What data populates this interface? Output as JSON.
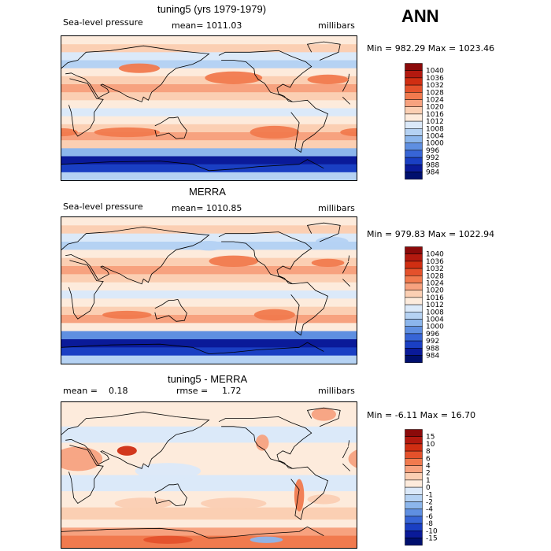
{
  "season": "ANN",
  "chart_data": [
    {
      "type": "heatmap",
      "title": "tuning5 (yrs 1979-1979)",
      "variable": "Sea-level pressure",
      "stat_label": "mean= 1011.03",
      "units": "millibars",
      "minmax": "Min = 982.29 Max = 1023.46",
      "min": 982.29,
      "max": 1023.46,
      "mean": 1011.03,
      "levels": [
        "1040",
        "1036",
        "1032",
        "1028",
        "1024",
        "1020",
        "1016",
        "1012",
        "1008",
        "1004",
        "1000",
        "996",
        "992",
        "988",
        "984"
      ],
      "colors": [
        "#8b0a0a",
        "#b3190f",
        "#d02e12",
        "#e4512b",
        "#f17a4e",
        "#f7a27f",
        "#fbcfb3",
        "#fdebdc",
        "#dbe9f9",
        "#b5d2f3",
        "#8cb6ec",
        "#5f8fe1",
        "#3765d6",
        "#1a3fc3",
        "#0a1a99",
        "#000f6e"
      ],
      "bands": [
        {
          "lat": 90,
          "level": 1012
        },
        {
          "lat": 80,
          "level": 1016
        },
        {
          "lat": 70,
          "level": 1008
        },
        {
          "lat": 60,
          "level": 1004
        },
        {
          "lat": 50,
          "level": 1012
        },
        {
          "lat": 40,
          "level": 1016
        },
        {
          "lat": 30,
          "level": 1020
        },
        {
          "lat": 20,
          "level": 1016
        },
        {
          "lat": 10,
          "level": 1012
        },
        {
          "lat": 0,
          "level": 1008
        },
        {
          "lat": -10,
          "level": 1012
        },
        {
          "lat": -20,
          "level": 1016
        },
        {
          "lat": -30,
          "level": 1020
        },
        {
          "lat": -40,
          "level": 1016
        },
        {
          "lat": -50,
          "level": 1000
        },
        {
          "lat": -60,
          "level": 984
        },
        {
          "lat": -70,
          "level": 988
        },
        {
          "lat": -80,
          "level": 1004
        },
        {
          "lat": -90,
          "level": 1008
        }
      ],
      "cells": [
        {
          "lon": -150,
          "lat": 38,
          "rlon": 35,
          "rlat": 8,
          "level": 1024
        },
        {
          "lon": -35,
          "lat": 36,
          "rlon": 25,
          "rlat": 6,
          "level": 1024
        },
        {
          "lon": -100,
          "lat": -30,
          "rlon": 30,
          "rlat": 8,
          "level": 1024
        },
        {
          "lon": 80,
          "lat": -30,
          "rlon": 40,
          "rlat": 6,
          "level": 1024
        },
        {
          "lon": 0,
          "lat": -30,
          "rlon": 20,
          "rlat": 5,
          "level": 1024
        },
        {
          "lon": 95,
          "lat": 50,
          "rlon": 25,
          "rlat": 6,
          "level": 1024
        },
        {
          "lon": -180,
          "lat": 55,
          "rlon": 15,
          "rlat": 5,
          "level": 1004
        }
      ]
    },
    {
      "type": "heatmap",
      "title": "MERRA",
      "variable": "Sea-level pressure",
      "stat_label": "mean= 1010.85",
      "units": "millibars",
      "minmax": "Min = 979.83 Max = 1022.94",
      "min": 979.83,
      "max": 1022.94,
      "mean": 1010.85,
      "levels": [
        "1040",
        "1036",
        "1032",
        "1028",
        "1024",
        "1020",
        "1016",
        "1012",
        "1008",
        "1004",
        "1000",
        "996",
        "992",
        "988",
        "984"
      ],
      "colors": [
        "#8b0a0a",
        "#b3190f",
        "#d02e12",
        "#e4512b",
        "#f17a4e",
        "#f7a27f",
        "#fbcfb3",
        "#fdebdc",
        "#dbe9f9",
        "#b5d2f3",
        "#8cb6ec",
        "#5f8fe1",
        "#3765d6",
        "#1a3fc3",
        "#0a1a99",
        "#000f6e"
      ],
      "bands": [
        {
          "lat": 90,
          "level": 1012
        },
        {
          "lat": 80,
          "level": 1016
        },
        {
          "lat": 70,
          "level": 1008
        },
        {
          "lat": 60,
          "level": 1004
        },
        {
          "lat": 50,
          "level": 1012
        },
        {
          "lat": 40,
          "level": 1016
        },
        {
          "lat": 30,
          "level": 1020
        },
        {
          "lat": 20,
          "level": 1016
        },
        {
          "lat": 10,
          "level": 1012
        },
        {
          "lat": 0,
          "level": 1008
        },
        {
          "lat": -10,
          "level": 1012
        },
        {
          "lat": -20,
          "level": 1016
        },
        {
          "lat": -30,
          "level": 1020
        },
        {
          "lat": -40,
          "level": 1012
        },
        {
          "lat": -50,
          "level": 996
        },
        {
          "lat": -60,
          "level": 984
        },
        {
          "lat": -70,
          "level": 988
        },
        {
          "lat": -80,
          "level": 1004
        },
        {
          "lat": -90,
          "level": 1008
        }
      ],
      "cells": [
        {
          "lon": -150,
          "lat": 36,
          "rlon": 30,
          "rlat": 7,
          "level": 1024
        },
        {
          "lon": -35,
          "lat": 34,
          "rlon": 20,
          "rlat": 5,
          "level": 1024
        },
        {
          "lon": -100,
          "lat": -30,
          "rlon": 25,
          "rlat": 7,
          "level": 1024
        },
        {
          "lon": 80,
          "lat": -30,
          "rlon": 30,
          "rlat": 5,
          "level": 1024
        },
        {
          "lon": -180,
          "lat": 55,
          "rlon": 20,
          "rlat": 6,
          "level": 1004
        },
        {
          "lon": -30,
          "lat": 60,
          "rlon": 20,
          "rlat": 6,
          "level": 1004
        }
      ]
    },
    {
      "type": "heatmap",
      "title": "tuning5 - MERRA",
      "stat_mean_label": "mean =",
      "stat_mean_value": "0.18",
      "stat_rmse_label": "rmse =",
      "stat_rmse_value": "1.72",
      "units": "millibars",
      "minmax": "Min = -6.11 Max = 16.70",
      "min": -6.11,
      "max": 16.7,
      "mean": 0.18,
      "rmse": 1.72,
      "levels": [
        "15",
        "10",
        "8",
        "6",
        "4",
        "2",
        "1",
        "0",
        "-1",
        "-2",
        "-4",
        "-6",
        "-8",
        "-10",
        "-15"
      ],
      "colors": [
        "#8b0a0a",
        "#b3190f",
        "#d02e12",
        "#e4512b",
        "#f17a4e",
        "#f7a27f",
        "#fbcfb3",
        "#fdebdc",
        "#dbe9f9",
        "#b5d2f3",
        "#8cb6ec",
        "#5f8fe1",
        "#3765d6",
        "#1a3fc3",
        "#0a1a99",
        "#000f6e"
      ],
      "bands": [
        {
          "lat": 90,
          "level": 0
        },
        {
          "lat": 60,
          "level": -1
        },
        {
          "lat": 40,
          "level": 0
        },
        {
          "lat": 20,
          "level": 0
        },
        {
          "lat": 0,
          "level": -1
        },
        {
          "lat": -20,
          "level": 0
        },
        {
          "lat": -40,
          "level": 1
        },
        {
          "lat": -55,
          "level": 0
        },
        {
          "lat": -65,
          "level": 2
        },
        {
          "lat": -75,
          "level": 4
        },
        {
          "lat": -90,
          "level": 2
        }
      ],
      "cells": [
        {
          "lon": 20,
          "lat": 20,
          "rlon": 30,
          "rlat": 15,
          "level": 2
        },
        {
          "lon": 80,
          "lat": 30,
          "rlon": 12,
          "rlat": 6,
          "level": 8
        },
        {
          "lon": -70,
          "lat": -25,
          "rlon": 6,
          "rlat": 20,
          "level": 4
        },
        {
          "lon": -115,
          "lat": 40,
          "rlon": 8,
          "rlat": 10,
          "level": 2
        },
        {
          "lon": -40,
          "lat": 75,
          "rlon": 15,
          "rlat": 8,
          "level": 2
        },
        {
          "lon": 100,
          "lat": -35,
          "rlon": 35,
          "rlat": 7,
          "level": 1
        },
        {
          "lon": -150,
          "lat": -35,
          "rlon": 40,
          "rlat": 7,
          "level": 1
        },
        {
          "lon": -40,
          "lat": -30,
          "rlon": 20,
          "rlat": 6,
          "level": 1
        },
        {
          "lon": 130,
          "lat": 5,
          "rlon": 40,
          "rlat": 10,
          "level": -1
        },
        {
          "lon": 130,
          "lat": -80,
          "rlon": 30,
          "rlat": 5,
          "level": 6
        },
        {
          "lon": -110,
          "lat": -80,
          "rlon": 20,
          "rlat": 4,
          "level": -4
        }
      ]
    }
  ]
}
